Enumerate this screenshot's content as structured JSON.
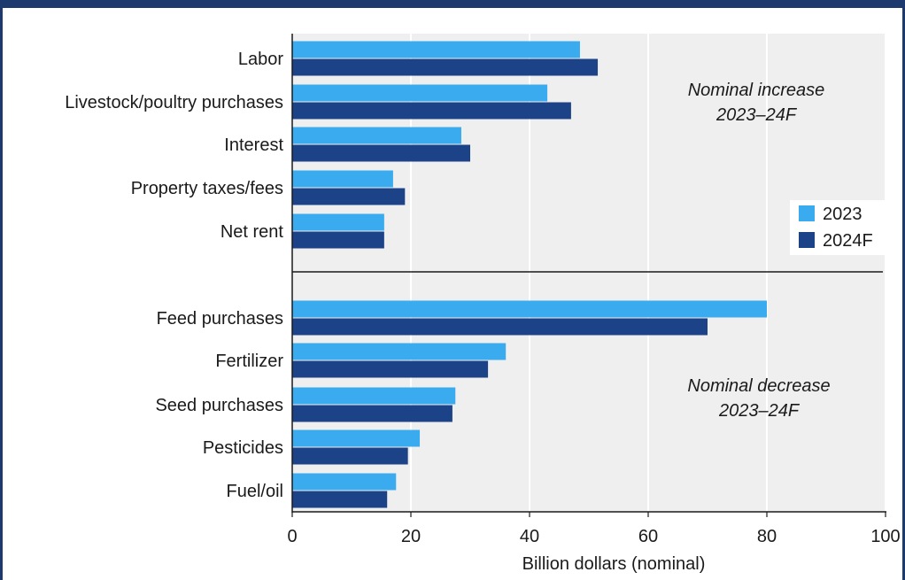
{
  "chart_data": {
    "type": "bar",
    "orientation": "horizontal",
    "title": "",
    "xlabel": "Billion dollars (nominal)",
    "ylabel": "",
    "xlim": [
      0,
      100
    ],
    "xticks": [
      0,
      20,
      40,
      60,
      80,
      100
    ],
    "grid": true,
    "legend_position": "right",
    "categories": [
      "Labor",
      "Livestock/poultry purchases",
      "Interest",
      "Property taxes/fees",
      "Net rent",
      "Feed purchases",
      "Fertilizer",
      "Seed purchases",
      "Pesticides",
      "Fuel/oil"
    ],
    "series": [
      {
        "name": "2023",
        "color": "#3aabee",
        "values": [
          48.5,
          43,
          28.5,
          17,
          15.5,
          80,
          36,
          27.5,
          21.5,
          17.5
        ]
      },
      {
        "name": "2024F",
        "color": "#1c4288",
        "values": [
          51.5,
          47,
          30,
          19,
          15.5,
          70,
          33,
          27,
          19.5,
          16
        ]
      }
    ],
    "groups": [
      {
        "label": "Nominal increase",
        "sublabel": "2023–24F",
        "categories": [
          "Labor",
          "Livestock/poultry purchases",
          "Interest",
          "Property taxes/fees",
          "Net rent"
        ]
      },
      {
        "label": "Nominal decrease",
        "sublabel": "2023–24F",
        "categories": [
          "Feed purchases",
          "Fertilizer",
          "Seed purchases",
          "Pesticides",
          "Fuel/oil"
        ]
      }
    ]
  }
}
